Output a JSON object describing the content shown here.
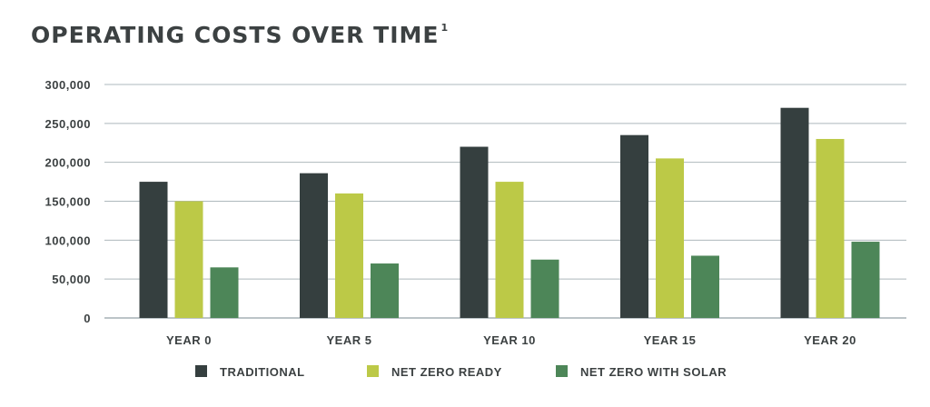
{
  "title": {
    "text": "OPERATING COSTS OVER TIME",
    "footnote": "1"
  },
  "colors": {
    "text": "#3c4142",
    "grid": "#aeb8bc",
    "axis": "#7a8a90"
  },
  "chart_data": {
    "type": "bar",
    "title": "OPERATING COSTS OVER TIME",
    "xlabel": "",
    "ylabel": "",
    "categories": [
      "YEAR 0",
      "YEAR 5",
      "YEAR 10",
      "YEAR 15",
      "YEAR 20"
    ],
    "series": [
      {
        "name": "TRADITIONAL",
        "color": "#353f3f",
        "values": [
          175000,
          186000,
          220000,
          235000,
          270000
        ]
      },
      {
        "name": "NET ZERO READY",
        "color": "#bcc947",
        "values": [
          150000,
          160000,
          175000,
          205000,
          230000
        ]
      },
      {
        "name": "NET ZERO WITH SOLAR",
        "color": "#4d8658",
        "values": [
          65000,
          70000,
          75000,
          80000,
          98000
        ]
      }
    ],
    "ylim": [
      0,
      300000
    ],
    "yticks": [
      0,
      50000,
      100000,
      150000,
      200000,
      250000,
      300000
    ],
    "ytick_labels": [
      "0",
      "50,000",
      "100,000",
      "150,000",
      "200,000",
      "250,000",
      "300,000"
    ],
    "grid": true,
    "legend_position": "bottom"
  }
}
